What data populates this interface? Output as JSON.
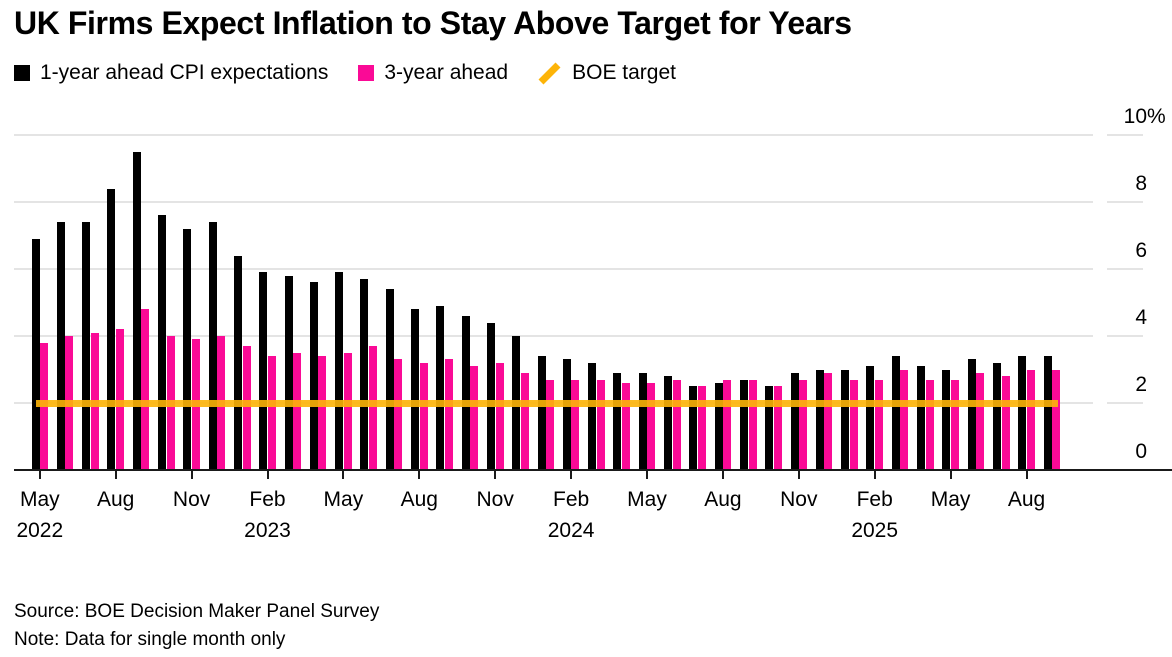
{
  "title": "UK Firms Expect Inflation to Stay Above Target for Years",
  "legend": {
    "item1_label": "1-year ahead CPI expectations",
    "item2_label": "3-year ahead",
    "item3_label": "BOE target"
  },
  "y_axis": {
    "labels": [
      "0",
      "2",
      "4",
      "6",
      "8",
      "10"
    ],
    "suffix": "%"
  },
  "footer": {
    "source": "Source: BOE Decision Maker Panel Survey",
    "note": "Note: Data for single month only"
  },
  "chart_data": {
    "type": "bar",
    "title": "UK Firms Expect Inflation to Stay Above Target for Years",
    "categories": [
      "May 2022",
      "Jun 2022",
      "Jul 2022",
      "Aug 2022",
      "Sep 2022",
      "Oct 2022",
      "Nov 2022",
      "Dec 2022",
      "Jan 2023",
      "Feb 2023",
      "Mar 2023",
      "Apr 2023",
      "May 2023",
      "Jun 2023",
      "Jul 2023",
      "Aug 2023",
      "Sep 2023",
      "Oct 2023",
      "Nov 2023",
      "Dec 2023",
      "Jan 2024",
      "Feb 2024",
      "Mar 2024",
      "Apr 2024",
      "May 2024",
      "Jun 2024",
      "Jul 2024",
      "Aug 2024",
      "Sep 2024",
      "Oct 2024",
      "Nov 2024",
      "Dec 2024",
      "Jan 2025",
      "Feb 2025",
      "Mar 2025",
      "Apr 2025",
      "May 2025",
      "Jun 2025",
      "Jul 2025",
      "Aug 2025",
      "Sep 2025"
    ],
    "series": [
      {
        "name": "1-year ahead CPI expectations",
        "color": "#000000",
        "values": [
          6.9,
          7.4,
          7.4,
          8.4,
          9.5,
          7.6,
          7.2,
          7.4,
          6.4,
          5.9,
          5.8,
          5.6,
          5.9,
          5.7,
          5.4,
          4.8,
          4.9,
          4.6,
          4.4,
          4.0,
          3.4,
          3.3,
          3.2,
          2.9,
          2.9,
          2.8,
          2.5,
          2.6,
          2.7,
          2.5,
          2.9,
          3.0,
          3.0,
          3.1,
          3.4,
          3.1,
          3.0,
          3.3,
          3.2,
          3.4,
          3.4
        ]
      },
      {
        "name": "3-year ahead",
        "color": "#FA0A96",
        "values": [
          3.8,
          4.0,
          4.1,
          4.2,
          4.8,
          4.0,
          3.9,
          4.0,
          3.7,
          3.4,
          3.5,
          3.4,
          3.5,
          3.7,
          3.3,
          3.2,
          3.3,
          3.1,
          3.2,
          2.9,
          2.7,
          2.7,
          2.7,
          2.6,
          2.6,
          2.7,
          2.5,
          2.7,
          2.7,
          2.5,
          2.7,
          2.9,
          2.7,
          2.7,
          3.0,
          2.7,
          2.7,
          2.9,
          2.8,
          3.0,
          3.0
        ]
      }
    ],
    "target_line": {
      "name": "BOE target",
      "value": 2,
      "color": "#FDB408"
    },
    "ylim": [
      0,
      10
    ],
    "y_ticks": [
      0,
      2,
      4,
      6,
      8,
      10
    ],
    "y_unit": "%",
    "grid": "horizontal",
    "legend_position": "top",
    "x_tick_labels": [
      {
        "index": 0,
        "month": "May",
        "year": "2022"
      },
      {
        "index": 3,
        "month": "Aug"
      },
      {
        "index": 6,
        "month": "Nov"
      },
      {
        "index": 9,
        "month": "Feb",
        "year": "2023"
      },
      {
        "index": 12,
        "month": "May"
      },
      {
        "index": 15,
        "month": "Aug"
      },
      {
        "index": 18,
        "month": "Nov"
      },
      {
        "index": 21,
        "month": "Feb",
        "year": "2024"
      },
      {
        "index": 24,
        "month": "May"
      },
      {
        "index": 27,
        "month": "Aug"
      },
      {
        "index": 30,
        "month": "Nov"
      },
      {
        "index": 33,
        "month": "Feb",
        "year": "2025"
      },
      {
        "index": 36,
        "month": "May"
      },
      {
        "index": 39,
        "month": "Aug"
      }
    ]
  }
}
